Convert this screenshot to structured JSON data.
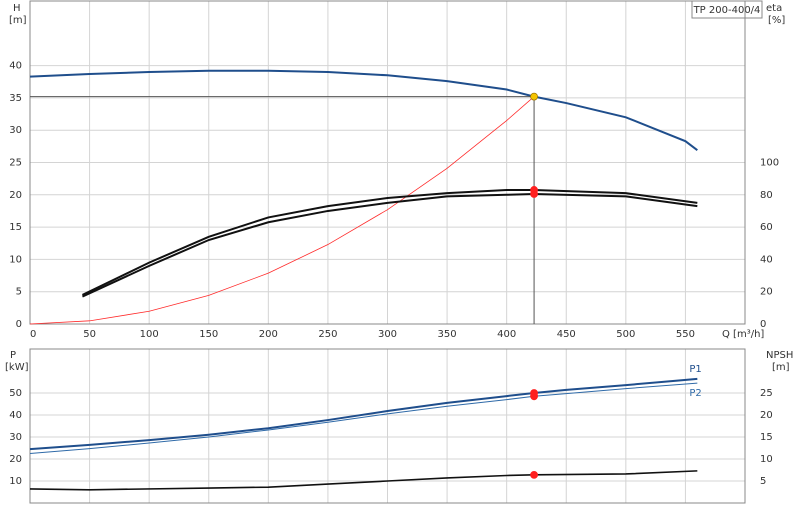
{
  "chart_data": [
    {
      "type": "line",
      "title": "TP 200-400/4",
      "y_label": "H",
      "y_unit": "[m]",
      "y2_label": "eta",
      "y2_unit": "[%]",
      "x_label": "Q [m³/h]",
      "xlim": [
        0,
        600
      ],
      "xticks": [
        0,
        50,
        100,
        150,
        200,
        250,
        300,
        350,
        400,
        450,
        500,
        550
      ],
      "ylim": [
        0,
        50
      ],
      "yticks": [
        0,
        5,
        10,
        15,
        20,
        25,
        30,
        35,
        40
      ],
      "y2lim": [
        0,
        200
      ],
      "y2ticks": [
        0,
        20,
        40,
        60,
        80,
        100
      ],
      "grid": true,
      "series": [
        {
          "color": "#1f4e8c",
          "width": 2,
          "x": [
            0,
            50,
            100,
            150,
            200,
            250,
            300,
            350,
            400,
            423,
            450,
            500,
            550,
            560
          ],
          "values": [
            38.3,
            38.7,
            39.0,
            39.2,
            39.2,
            39.0,
            38.5,
            37.6,
            36.3,
            35.2,
            34.2,
            32.0,
            28.3,
            26.9
          ]
        },
        {
          "color": "#ff2a2a",
          "width": 0.8,
          "x": [
            0,
            50,
            100,
            150,
            200,
            250,
            300,
            350,
            400,
            423
          ],
          "values": [
            0,
            0.49,
            1.97,
            4.43,
            7.87,
            12.3,
            17.7,
            24.1,
            31.5,
            35.2
          ]
        },
        {
          "color": "#111111",
          "width": 2,
          "axis": "y2",
          "x": [
            44,
            100,
            150,
            200,
            250,
            300,
            350,
            400,
            423,
            500,
            560
          ],
          "values": [
            18,
            38,
            54,
            66,
            73,
            78,
            81,
            83,
            83,
            81,
            75
          ]
        },
        {
          "color": "#111111",
          "width": 2,
          "axis": "y2",
          "x": [
            44,
            100,
            150,
            200,
            250,
            300,
            350,
            400,
            423,
            500,
            560
          ],
          "values": [
            17,
            36,
            52,
            63,
            70,
            75,
            79,
            80,
            80.5,
            79,
            73
          ]
        }
      ],
      "markers": [
        {
          "x": 423,
          "value": 35.2,
          "color": "#f5c400",
          "guides": true
        },
        {
          "x": 423,
          "value": 83,
          "axis": "y2",
          "color": "#ff2020"
        },
        {
          "x": 423,
          "value": 80.5,
          "axis": "y2",
          "color": "#ff2020"
        }
      ]
    },
    {
      "type": "line",
      "y_label": "P",
      "y_unit": "[kW]",
      "y2_label": "NPSH",
      "y2_unit": "[m]",
      "xlim": [
        0,
        600
      ],
      "xticks": [
        0,
        50,
        100,
        150,
        200,
        250,
        300,
        350,
        400,
        450,
        500,
        550
      ],
      "ylim": [
        0,
        70
      ],
      "yticks": [
        10,
        20,
        30,
        40,
        50
      ],
      "y2lim": [
        0,
        35
      ],
      "y2ticks": [
        5,
        10,
        15,
        20,
        25
      ],
      "grid": true,
      "series": [
        {
          "name": "P1",
          "color": "#1f4e8c",
          "width": 2,
          "x": [
            0,
            50,
            100,
            150,
            200,
            250,
            300,
            350,
            400,
            423,
            450,
            500,
            560
          ],
          "values": [
            24.5,
            26.4,
            28.6,
            31,
            34,
            37.7,
            41.8,
            45.5,
            48.6,
            50,
            51.4,
            53.6,
            56.4
          ]
        },
        {
          "name": "P2",
          "color": "#2f6aa8",
          "width": 1,
          "x": [
            0,
            50,
            100,
            150,
            200,
            250,
            300,
            350,
            400,
            423,
            450,
            500,
            560
          ],
          "values": [
            22.5,
            24.7,
            27.3,
            30,
            33.2,
            36.7,
            40.5,
            44,
            47,
            48.5,
            49.7,
            52,
            54.5
          ]
        },
        {
          "color": "#111111",
          "width": 1.6,
          "axis": "y2",
          "x": [
            0,
            50,
            150,
            200,
            250,
            300,
            350,
            400,
            423,
            500,
            560
          ],
          "values": [
            3.2,
            3.0,
            3.4,
            3.6,
            4.3,
            5.0,
            5.7,
            6.25,
            6.4,
            6.6,
            7.3
          ]
        }
      ],
      "markers": [
        {
          "x": 423,
          "value": 50,
          "color": "#ff2020"
        },
        {
          "x": 423,
          "value": 48.5,
          "color": "#ff2020"
        },
        {
          "x": 423,
          "value": 6.4,
          "axis": "y2",
          "color": "#ff2020"
        }
      ]
    }
  ]
}
